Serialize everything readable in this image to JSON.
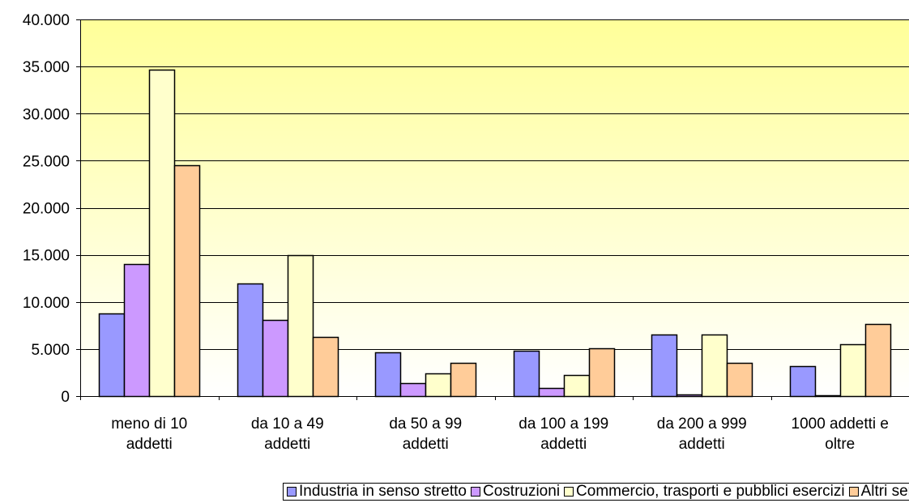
{
  "chart_data": {
    "type": "bar",
    "categories": [
      [
        "meno di 10",
        "addetti"
      ],
      [
        "da 10 a 49",
        "addetti"
      ],
      [
        "da 50 a 99",
        "addetti"
      ],
      [
        "da 100 a 199",
        "addetti"
      ],
      [
        "da 200 a 999",
        "addetti"
      ],
      [
        "1000 addetti e",
        "oltre"
      ]
    ],
    "series": [
      {
        "name": "Industria in senso stretto",
        "color": "#9999ff",
        "values": [
          8800,
          12000,
          4650,
          4850,
          6500,
          3200
        ]
      },
      {
        "name": "Costruzioni",
        "color": "#cc99ff",
        "values": [
          14000,
          8100,
          1400,
          850,
          150,
          100
        ]
      },
      {
        "name": "Commercio, trasporti e pubblici esercizi",
        "color": "#ffffcc",
        "values": [
          34700,
          15000,
          2400,
          2250,
          6500,
          5500
        ]
      },
      {
        "name": "Altri servizi",
        "color": "#ffcc99",
        "values": [
          24500,
          6300,
          3550,
          5050,
          3500,
          7650
        ]
      }
    ],
    "y_ticks": [
      "0",
      "5.000",
      "10.000",
      "15.000",
      "20.000",
      "25.000",
      "30.000",
      "35.000",
      "40.000"
    ],
    "ylim": [
      0,
      40000
    ],
    "grid": true,
    "legend_position": "bottom",
    "plot_background": {
      "top": "#ffff99",
      "bottom": "#ffffff"
    },
    "title": "",
    "xlabel": "",
    "ylabel": ""
  }
}
